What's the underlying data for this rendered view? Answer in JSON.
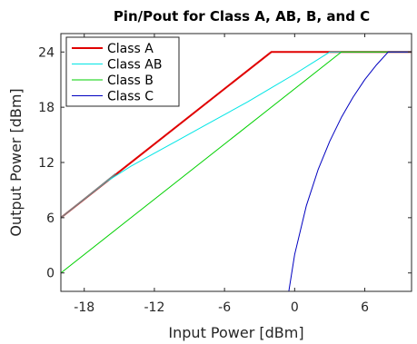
{
  "chart_data": {
    "type": "line",
    "title": "Pin/Pout for Class A, AB, B, and C",
    "xlabel": "Input Power [dBm]",
    "ylabel": "Output Power [dBm]",
    "xlim": [
      -20,
      10
    ],
    "ylim": [
      -2,
      26
    ],
    "xticks": [
      -18,
      -12,
      -6,
      0,
      6
    ],
    "yticks": [
      0,
      6,
      12,
      18,
      24
    ],
    "grid": false,
    "legend_position": "top-left",
    "series": [
      {
        "name": "Class A",
        "color": "#e00000",
        "width": 2,
        "x": [
          -20,
          -2,
          10
        ],
        "y": [
          6,
          24,
          24
        ]
      },
      {
        "name": "Class AB",
        "color": "#00e5e5",
        "width": 1,
        "x": [
          -20,
          -18,
          -16,
          -14,
          -12,
          -10,
          -8,
          -6,
          -4,
          -2,
          0,
          2,
          3,
          10
        ],
        "y": [
          6,
          8,
          10,
          11.6,
          13,
          14.4,
          15.8,
          17.2,
          18.6,
          20.1,
          21.6,
          23.2,
          24,
          24
        ]
      },
      {
        "name": "Class B",
        "color": "#00d000",
        "width": 1,
        "x": [
          -20,
          4,
          10
        ],
        "y": [
          0,
          24,
          24
        ]
      },
      {
        "name": "Class C",
        "color": "#0000c0",
        "width": 1,
        "x": [
          -0.5,
          0,
          1,
          2,
          3,
          4,
          5,
          6,
          7,
          8,
          10
        ],
        "y": [
          -2,
          2,
          7.3,
          11.2,
          14.3,
          16.9,
          19.1,
          21,
          22.6,
          24,
          24
        ]
      }
    ],
    "overlay": {
      "color": "#808080",
      "x": [
        -20,
        -15.3
      ],
      "y": [
        6,
        10.8
      ]
    }
  }
}
